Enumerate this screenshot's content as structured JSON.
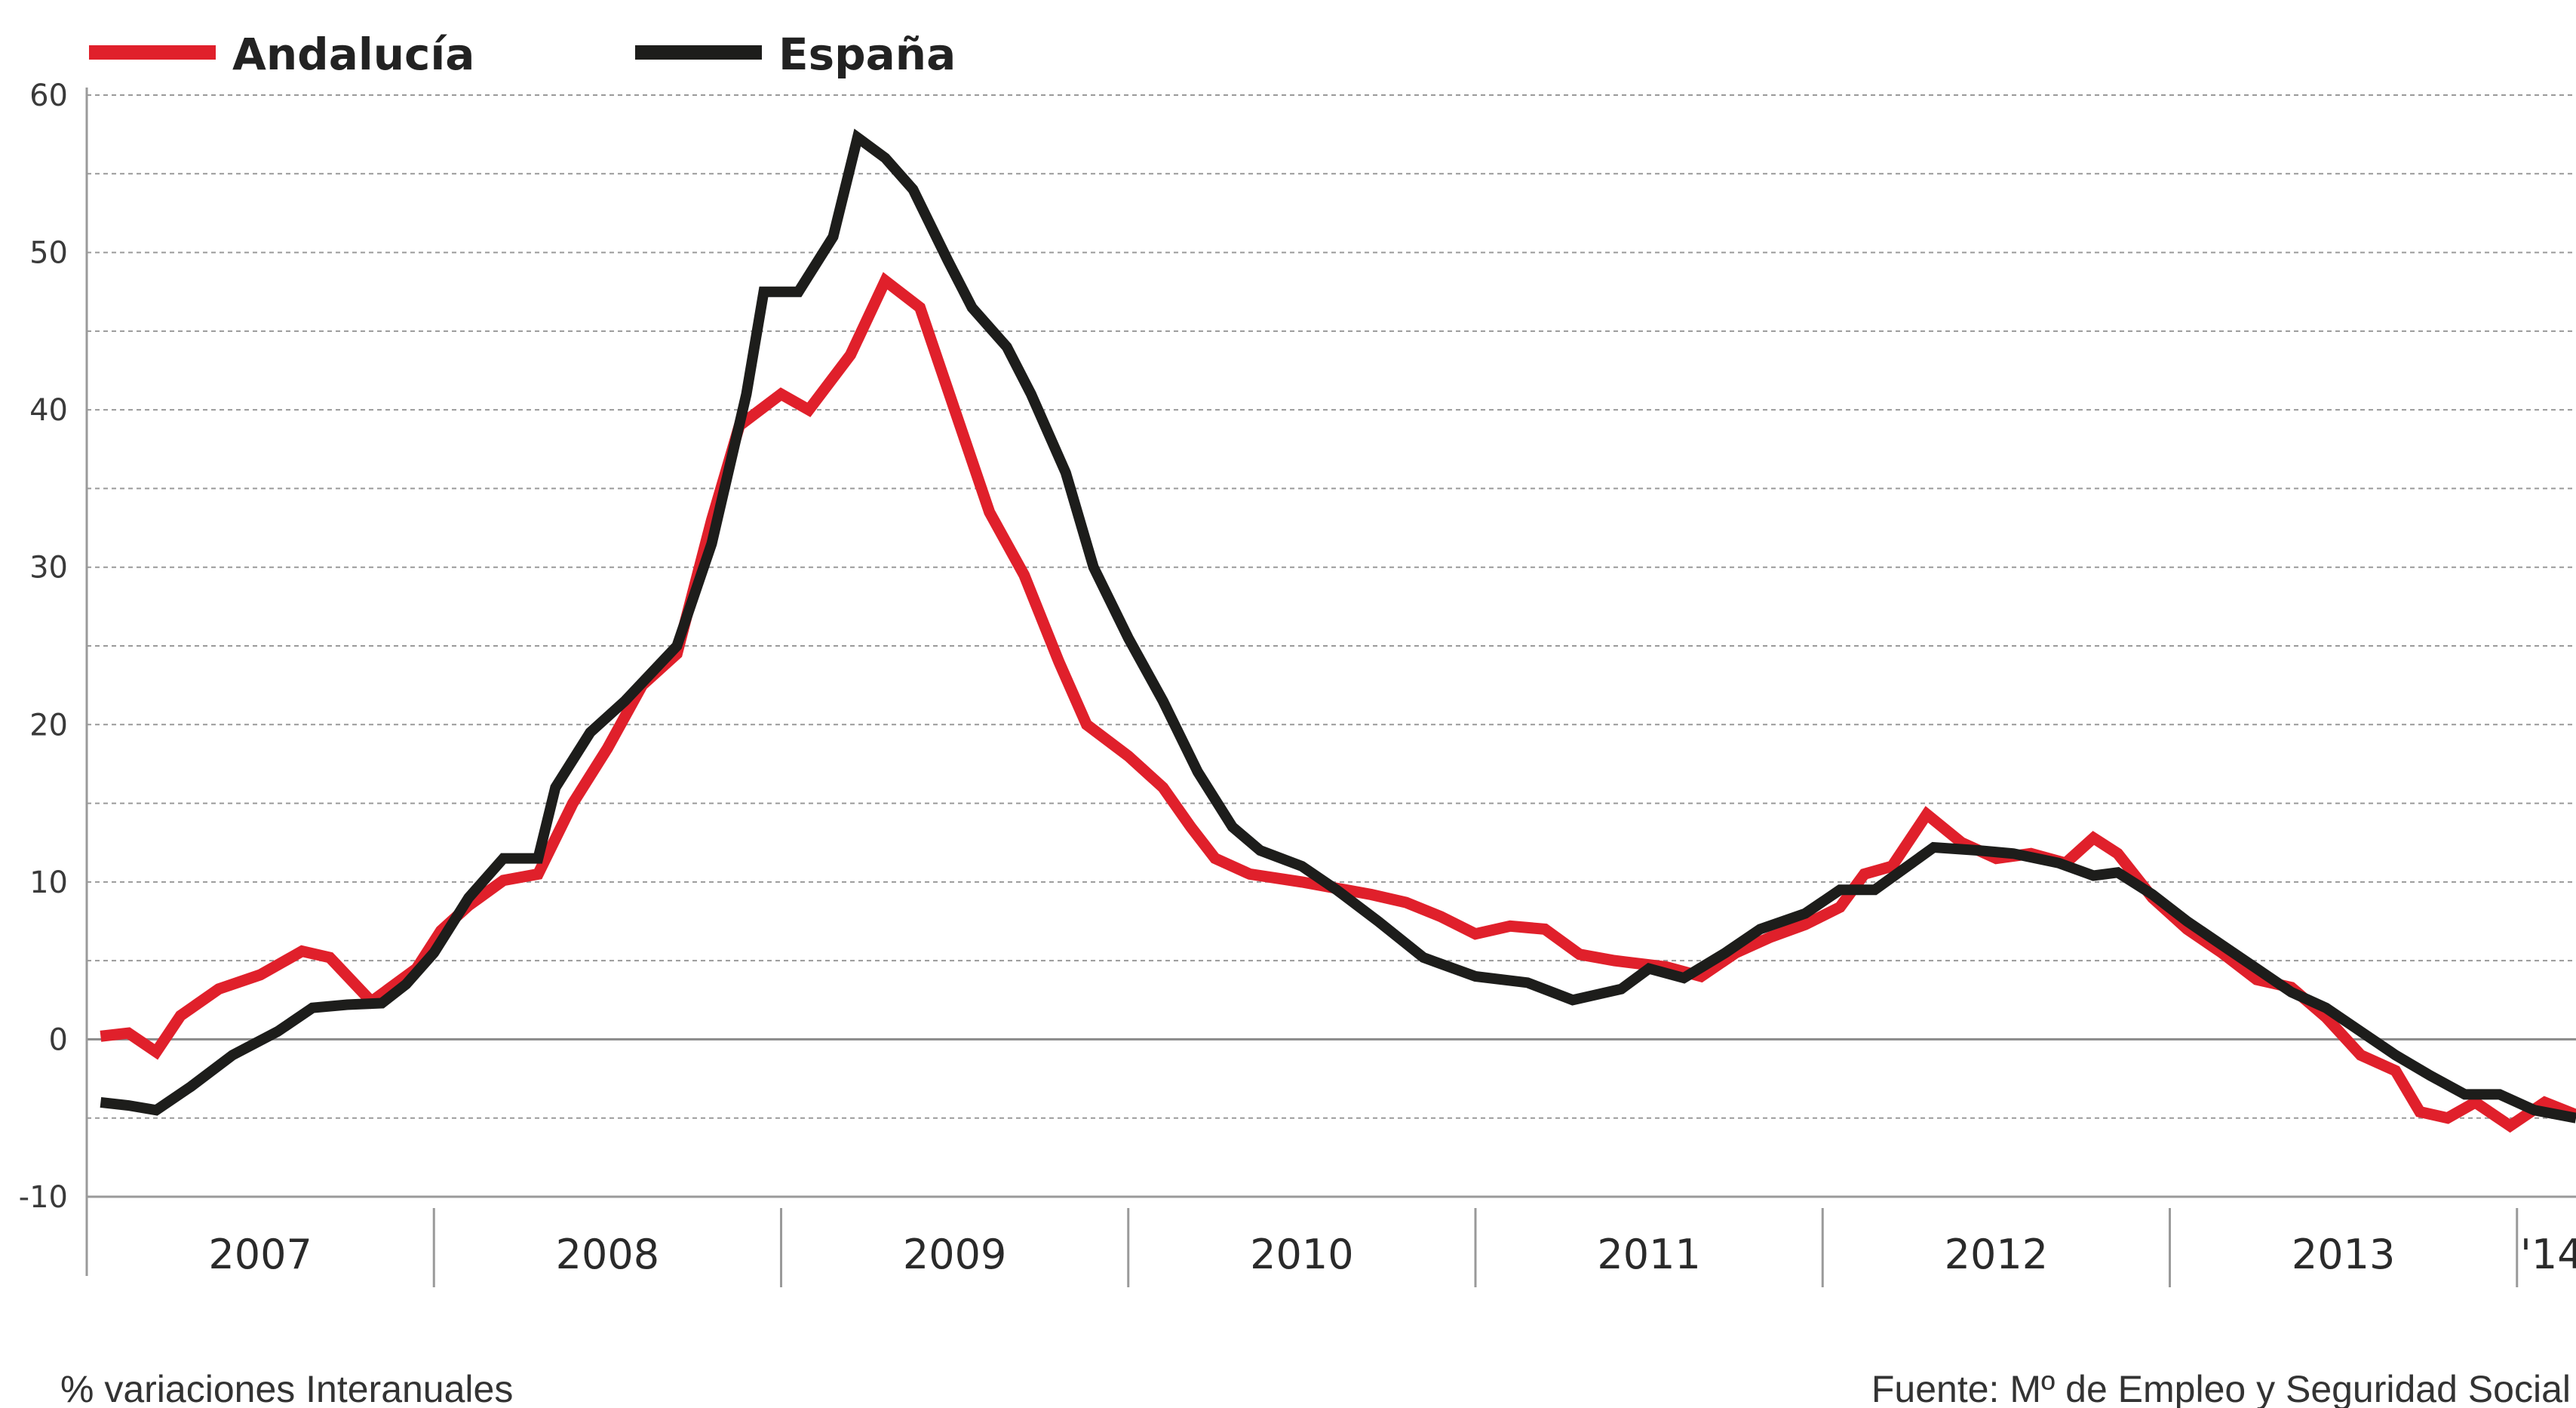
{
  "chart_data": {
    "type": "line",
    "ylim": [
      -10,
      60
    ],
    "yticks": [
      60,
      50,
      40,
      30,
      20,
      10,
      0,
      -10
    ],
    "ytick_labels": [
      "60",
      "50",
      "40",
      "30",
      "20",
      "10",
      "0",
      "-10"
    ],
    "xlim": [
      2007.0,
      2014.17
    ],
    "year_boundaries": [
      2008,
      2009,
      2010,
      2011,
      2012,
      2013,
      2014
    ],
    "year_labels": [
      {
        "label": "2007",
        "at": 2007.5
      },
      {
        "label": "2008",
        "at": 2008.5
      },
      {
        "label": "2009",
        "at": 2009.5
      },
      {
        "label": "2010",
        "at": 2010.5
      },
      {
        "label": "2011",
        "at": 2011.5
      },
      {
        "label": "2012",
        "at": 2012.5
      },
      {
        "label": "2013",
        "at": 2013.5
      },
      {
        "label": "'14",
        "at": 2014.1
      }
    ],
    "grid": "horizontal-dashed",
    "legend_position": "top-left",
    "series": [
      {
        "name": "Andalucía",
        "color": "#e0202b",
        "points": [
          [
            2007.04,
            0.2
          ],
          [
            2007.12,
            0.4
          ],
          [
            2007.2,
            -0.8
          ],
          [
            2007.27,
            1.5
          ],
          [
            2007.38,
            3.2
          ],
          [
            2007.5,
            4.1
          ],
          [
            2007.62,
            5.6
          ],
          [
            2007.7,
            5.2
          ],
          [
            2007.82,
            2.4
          ],
          [
            2007.95,
            4.5
          ],
          [
            2008.02,
            6.9
          ],
          [
            2008.1,
            8.5
          ],
          [
            2008.2,
            10.1
          ],
          [
            2008.3,
            10.5
          ],
          [
            2008.4,
            15.0
          ],
          [
            2008.5,
            18.5
          ],
          [
            2008.6,
            22.5
          ],
          [
            2008.7,
            24.5
          ],
          [
            2008.8,
            33.0
          ],
          [
            2008.88,
            39.0
          ],
          [
            2009.0,
            41.0
          ],
          [
            2009.08,
            40.0
          ],
          [
            2009.2,
            43.5
          ],
          [
            2009.3,
            48.2
          ],
          [
            2009.4,
            46.5
          ],
          [
            2009.5,
            40.0
          ],
          [
            2009.6,
            33.5
          ],
          [
            2009.7,
            29.5
          ],
          [
            2009.8,
            24.0
          ],
          [
            2009.88,
            20.0
          ],
          [
            2010.0,
            18.0
          ],
          [
            2010.1,
            16.0
          ],
          [
            2010.18,
            13.5
          ],
          [
            2010.25,
            11.5
          ],
          [
            2010.35,
            10.5
          ],
          [
            2010.5,
            10.0
          ],
          [
            2010.6,
            9.6
          ],
          [
            2010.7,
            9.2
          ],
          [
            2010.8,
            8.7
          ],
          [
            2010.9,
            7.8
          ],
          [
            2011.0,
            6.7
          ],
          [
            2011.1,
            7.2
          ],
          [
            2011.2,
            7.0
          ],
          [
            2011.3,
            5.4
          ],
          [
            2011.4,
            5.0
          ],
          [
            2011.55,
            4.6
          ],
          [
            2011.65,
            4.0
          ],
          [
            2011.75,
            5.5
          ],
          [
            2011.85,
            6.5
          ],
          [
            2011.95,
            7.3
          ],
          [
            2012.05,
            8.4
          ],
          [
            2012.12,
            10.5
          ],
          [
            2012.2,
            11.0
          ],
          [
            2012.3,
            14.3
          ],
          [
            2012.4,
            12.5
          ],
          [
            2012.5,
            11.5
          ],
          [
            2012.6,
            11.8
          ],
          [
            2012.7,
            11.2
          ],
          [
            2012.78,
            12.8
          ],
          [
            2012.85,
            11.8
          ],
          [
            2012.95,
            9.0
          ],
          [
            2013.05,
            7.0
          ],
          [
            2013.15,
            5.5
          ],
          [
            2013.25,
            3.8
          ],
          [
            2013.35,
            3.3
          ],
          [
            2013.45,
            1.4
          ],
          [
            2013.55,
            -1.0
          ],
          [
            2013.65,
            -2.0
          ],
          [
            2013.72,
            -4.6
          ],
          [
            2013.8,
            -5.0
          ],
          [
            2013.88,
            -4.0
          ],
          [
            2013.98,
            -5.5
          ],
          [
            2014.08,
            -4.0
          ],
          [
            2014.17,
            -4.8
          ]
        ]
      },
      {
        "name": "España",
        "color": "#1d1d1b",
        "points": [
          [
            2007.04,
            -4.0
          ],
          [
            2007.12,
            -4.2
          ],
          [
            2007.2,
            -4.5
          ],
          [
            2007.3,
            -3.0
          ],
          [
            2007.42,
            -1.0
          ],
          [
            2007.55,
            0.5
          ],
          [
            2007.65,
            2.0
          ],
          [
            2007.75,
            2.2
          ],
          [
            2007.85,
            2.3
          ],
          [
            2007.92,
            3.5
          ],
          [
            2008.0,
            5.5
          ],
          [
            2008.1,
            9.0
          ],
          [
            2008.2,
            11.5
          ],
          [
            2008.3,
            11.5
          ],
          [
            2008.35,
            16.0
          ],
          [
            2008.45,
            19.5
          ],
          [
            2008.55,
            21.5
          ],
          [
            2008.7,
            25.0
          ],
          [
            2008.8,
            31.5
          ],
          [
            2008.9,
            41.0
          ],
          [
            2008.95,
            47.5
          ],
          [
            2009.05,
            47.5
          ],
          [
            2009.15,
            51.0
          ],
          [
            2009.22,
            57.3
          ],
          [
            2009.3,
            56.0
          ],
          [
            2009.38,
            54.0
          ],
          [
            2009.48,
            49.5
          ],
          [
            2009.55,
            46.5
          ],
          [
            2009.65,
            44.0
          ],
          [
            2009.72,
            41.0
          ],
          [
            2009.82,
            36.0
          ],
          [
            2009.9,
            30.0
          ],
          [
            2010.0,
            25.5
          ],
          [
            2010.1,
            21.5
          ],
          [
            2010.2,
            17.0
          ],
          [
            2010.3,
            13.5
          ],
          [
            2010.38,
            12.0
          ],
          [
            2010.5,
            11.0
          ],
          [
            2010.6,
            9.5
          ],
          [
            2010.72,
            7.5
          ],
          [
            2010.85,
            5.2
          ],
          [
            2011.0,
            4.0
          ],
          [
            2011.15,
            3.6
          ],
          [
            2011.28,
            2.5
          ],
          [
            2011.42,
            3.2
          ],
          [
            2011.5,
            4.5
          ],
          [
            2011.6,
            3.9
          ],
          [
            2011.72,
            5.5
          ],
          [
            2011.82,
            7.0
          ],
          [
            2011.95,
            8.0
          ],
          [
            2012.05,
            9.5
          ],
          [
            2012.15,
            9.5
          ],
          [
            2012.32,
            12.2
          ],
          [
            2012.45,
            12.0
          ],
          [
            2012.55,
            11.8
          ],
          [
            2012.68,
            11.2
          ],
          [
            2012.78,
            10.4
          ],
          [
            2012.85,
            10.6
          ],
          [
            2012.95,
            9.2
          ],
          [
            2013.05,
            7.5
          ],
          [
            2013.15,
            6.0
          ],
          [
            2013.25,
            4.5
          ],
          [
            2013.35,
            3.0
          ],
          [
            2013.45,
            2.0
          ],
          [
            2013.55,
            0.5
          ],
          [
            2013.65,
            -1.0
          ],
          [
            2013.75,
            -2.3
          ],
          [
            2013.85,
            -3.5
          ],
          [
            2013.95,
            -3.5
          ],
          [
            2014.05,
            -4.5
          ],
          [
            2014.17,
            -5.0
          ]
        ]
      }
    ],
    "footer_left": "% variaciones Interanuales",
    "footer_right": "Fuente: Mº de Empleo y Seguridad Social"
  }
}
